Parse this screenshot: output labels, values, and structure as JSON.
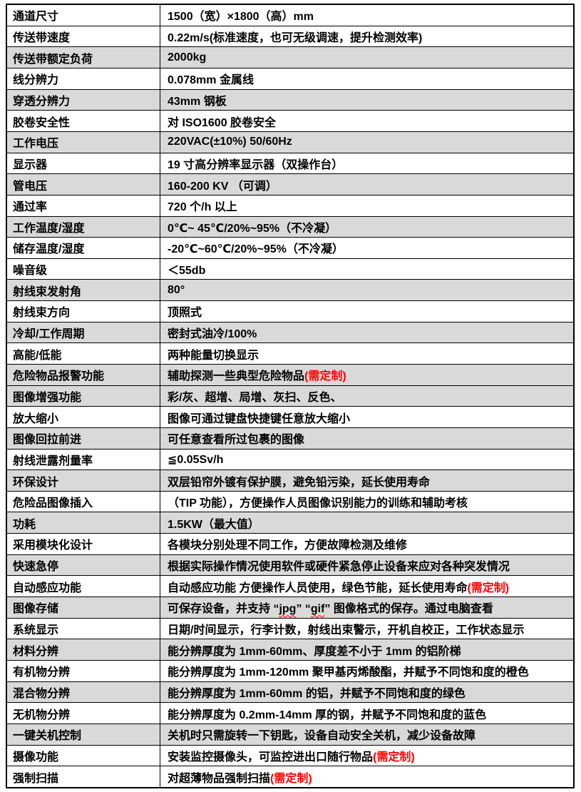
{
  "page": {
    "background": "#ffffff"
  },
  "table": {
    "border_color": "#000000",
    "shaded_row_bg": "#d9d9d9",
    "text_color": "#000000",
    "note_color": "#ff0000",
    "columns": [
      "label",
      "value"
    ],
    "rows": [
      {
        "label": "通道尺寸",
        "value": "1500（宽）×1800（高）mm",
        "shaded": false
      },
      {
        "label": "传送带速度",
        "value": "0.22m/s(标准速度，也可无级调速，提升检测效率)",
        "shaded": false
      },
      {
        "label": "传送带额定负荷",
        "value": "2000kg",
        "shaded": true
      },
      {
        "label": "线分辨力",
        "value": "0.078mm 金属线",
        "shaded": false
      },
      {
        "label": "穿透分辨力",
        "value": "43mm 钢板",
        "shaded": true
      },
      {
        "label": "胶卷安全性",
        "value": "对 ISO1600 胶卷安全",
        "shaded": false
      },
      {
        "label": "工作电压",
        "value": "220VAC(±10%) 50/60Hz",
        "shaded": true
      },
      {
        "label": "显示器",
        "value": "19 寸高分辨率显示器（双操作台）",
        "shaded": false
      },
      {
        "label": "管电压",
        "value": "160-200 KV （可调）",
        "shaded": true
      },
      {
        "label": "通过率",
        "value": "720 个/h 以上",
        "shaded": false
      },
      {
        "label": "工作温度/湿度",
        "value": "0℃~ 45℃/20%~95%（不冷凝）",
        "shaded": true
      },
      {
        "label": "储存温度/湿度",
        "value": "-20℃~60℃/20%~95%（不冷凝）",
        "shaded": false
      },
      {
        "label": "噪音级",
        "value": "＜55db",
        "shaded": false
      },
      {
        "label": "射线束发射角",
        "value": "80°",
        "shaded": true
      },
      {
        "label": "射线束方向",
        "value": "顶照式",
        "shaded": false
      },
      {
        "label": "冷却/工作周期",
        "value": "密封式油冷/100%",
        "shaded": true
      },
      {
        "label": "高能/低能",
        "value": "两种能量切换显示",
        "shaded": false
      },
      {
        "label": "危险物品报警功能",
        "value": "辅助探测一些典型危险物品",
        "note": "(需定制)",
        "shaded": true
      },
      {
        "label": "图像增强功能",
        "value": "彩/灰、超增、局增、灰扫、反色、",
        "shaded": true
      },
      {
        "label": "放大缩小",
        "value": "图像可通过键盘快捷键任意放大缩小",
        "shaded": false
      },
      {
        "label": "图像回拉前进",
        "value": "可任意查看所过包裹的图像",
        "shaded": true
      },
      {
        "label": "射线泄露剂量率",
        "value": "≦0.05Sv/h",
        "shaded": false
      },
      {
        "label": "环保设计",
        "value": "双层铅帘外镀有保护膜，避免铅污染，延长使用寿命",
        "shaded": true
      },
      {
        "label": "危险品图像插入",
        "value": "（TIP 功能），方便操作人员图像识别能力的训练和辅助考核",
        "shaded": false
      },
      {
        "label": "功耗",
        "value": "1.5KW（最大值）",
        "shaded": true
      },
      {
        "label": "采用模块化设计",
        "value": "各模块分别处理不同工作，方便故障检测及维修",
        "shaded": false
      },
      {
        "label": "快速急停",
        "value": "根据实际操作情况使用软件或硬件紧急停止设备来应对各种突发情况",
        "shaded": true
      },
      {
        "label": "自动感应功能",
        "value": "自动感应功能 方便操作人员使用，绿色节能，延长使用寿命",
        "note": "(需定制)",
        "shaded": false
      },
      {
        "label": "图像存储",
        "value": "可保存设备，并支持 “jpg” “gif” 图像格式的保存。通过电脑查看",
        "shaded": true,
        "wavy": [
          "jpg",
          "gif"
        ]
      },
      {
        "label": "系统显示",
        "value": "日期/时间显示，行李计数，射线出束警示，开机自校正，工作状态显示",
        "shaded": false
      },
      {
        "label": "材料分辨",
        "value": "能分辨厚度为 1mm-60mm、厚度差不小于 1mm 的铝阶梯",
        "shaded": true
      },
      {
        "label": "有机物分辨",
        "value": "能分辨厚度为 1mm-120mm 聚甲基丙烯酸酯，并赋予不同饱和度的橙色",
        "shaded": false
      },
      {
        "label": "混合物分辨",
        "value": "能分辨厚度为 1mm-60mm 的铝，并赋予不同饱和度的绿色",
        "shaded": true
      },
      {
        "label": "无机物分辨",
        "value": "能分辨厚度为 0.2mm-14mm 厚的钢，并赋予不同饱和度的蓝色",
        "shaded": false
      },
      {
        "label": "一键关机控制",
        "value": "关机时只需旋转一下钥匙，设备自动安全关机，减少设备故障",
        "shaded": true
      },
      {
        "label": "摄像功能",
        "value": "安装监控摄像头，可监控进出口随行物品",
        "note": "(需定制)",
        "shaded": false
      },
      {
        "label": "强制扫描",
        "value": "对超薄物品强制扫描",
        "note": "(需定制)",
        "shaded": false
      }
    ]
  }
}
